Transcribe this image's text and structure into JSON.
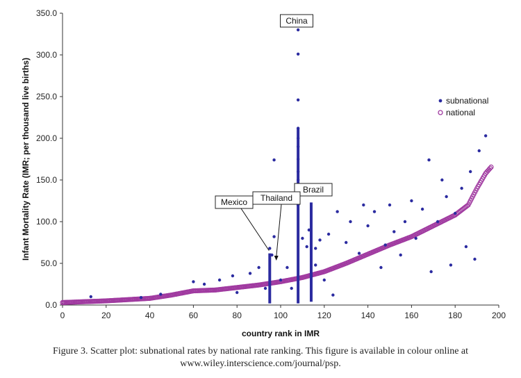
{
  "chart_data": {
    "type": "scatter",
    "title": "",
    "xlabel": "country rank in IMR",
    "ylabel": "Infant Mortality Rate (IMR; per thousand live births)",
    "xlim": [
      0,
      200
    ],
    "ylim": [
      0,
      350
    ],
    "x_ticks": [
      0,
      20,
      40,
      60,
      80,
      100,
      120,
      140,
      160,
      180,
      200
    ],
    "y_ticks": [
      "0.0",
      "50.0",
      "100.0",
      "150.0",
      "200.0",
      "250.0",
      "300.0",
      "350.0"
    ],
    "grid": false,
    "legend_position": "top-right",
    "series": [
      {
        "name": "subnational",
        "marker": "dot",
        "color": "#2b2ba0",
        "points": [
          [
            95,
            68
          ],
          [
            96,
            60
          ],
          [
            97,
            82
          ],
          [
            97,
            174
          ],
          [
            108,
            330
          ],
          [
            108,
            301
          ],
          [
            108,
            246
          ],
          [
            108,
            212
          ],
          [
            108,
            200
          ],
          [
            108,
            190
          ],
          [
            108,
            175
          ],
          [
            108,
            160
          ],
          [
            108,
            150
          ],
          [
            108,
            140
          ],
          [
            108,
            130
          ],
          [
            108,
            120
          ],
          [
            110,
            80
          ],
          [
            112,
            70
          ],
          [
            113,
            90
          ],
          [
            116,
            68
          ],
          [
            118,
            78
          ],
          [
            122,
            85
          ],
          [
            126,
            112
          ],
          [
            130,
            75
          ],
          [
            132,
            100
          ],
          [
            136,
            62
          ],
          [
            138,
            120
          ],
          [
            140,
            95
          ],
          [
            143,
            112
          ],
          [
            146,
            45
          ],
          [
            148,
            72
          ],
          [
            150,
            120
          ],
          [
            152,
            88
          ],
          [
            155,
            60
          ],
          [
            157,
            100
          ],
          [
            160,
            125
          ],
          [
            162,
            80
          ],
          [
            165,
            115
          ],
          [
            168,
            174
          ],
          [
            169,
            40
          ],
          [
            172,
            100
          ],
          [
            174,
            150
          ],
          [
            176,
            130
          ],
          [
            178,
            48
          ],
          [
            180,
            110
          ],
          [
            183,
            140
          ],
          [
            185,
            70
          ],
          [
            187,
            160
          ],
          [
            189,
            55
          ],
          [
            191,
            185
          ],
          [
            194,
            203
          ],
          [
            13,
            10
          ],
          [
            36,
            9
          ],
          [
            45,
            13
          ],
          [
            60,
            28
          ],
          [
            65,
            25
          ],
          [
            72,
            30
          ],
          [
            78,
            35
          ],
          [
            80,
            15
          ],
          [
            86,
            38
          ],
          [
            90,
            45
          ],
          [
            93,
            20
          ],
          [
            100,
            30
          ],
          [
            103,
            45
          ],
          [
            105,
            20
          ],
          [
            116,
            48
          ],
          [
            120,
            30
          ],
          [
            124,
            12
          ]
        ],
        "vertical_bands": [
          {
            "x": 95,
            "y_range": [
              2,
              62
            ]
          },
          {
            "x": 108,
            "y_range": [
              2,
              212
            ]
          },
          {
            "x": 114,
            "y_range": [
              4,
              123
            ]
          }
        ]
      },
      {
        "name": "national",
        "marker": "open-circle",
        "color": "#a03aa0",
        "trend": [
          [
            0,
            3
          ],
          [
            20,
            5
          ],
          [
            40,
            8
          ],
          [
            50,
            12
          ],
          [
            60,
            17
          ],
          [
            70,
            18
          ],
          [
            80,
            21
          ],
          [
            90,
            24
          ],
          [
            100,
            28
          ],
          [
            110,
            33
          ],
          [
            120,
            40
          ],
          [
            130,
            50
          ],
          [
            140,
            61
          ],
          [
            150,
            72
          ],
          [
            160,
            82
          ],
          [
            170,
            95
          ],
          [
            180,
            108
          ],
          [
            186,
            120
          ],
          [
            190,
            140
          ],
          [
            194,
            158
          ],
          [
            197,
            167
          ]
        ]
      }
    ],
    "annotations": [
      {
        "text": "China",
        "x": 108,
        "y": 330
      },
      {
        "text": "Brazil",
        "x": 114,
        "y": 123
      },
      {
        "text": "Thailand",
        "x": 98,
        "y": 60
      },
      {
        "text": "Mexico",
        "x": 95,
        "y": 67
      }
    ]
  },
  "caption": "Figure 3.  Scatter plot: subnational rates by national rate ranking. This figure is available in colour online at www.wiley.interscience.com/journal/psp."
}
